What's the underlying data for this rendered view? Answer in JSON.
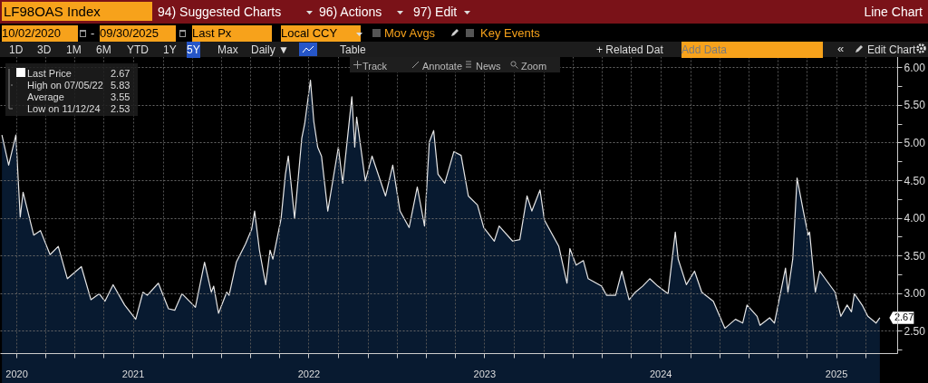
{
  "chart_data": {
    "type": "area",
    "title": "LF98OAS Index",
    "subtitle": "Line Chart",
    "annotations": [
      "94) Suggested Charts",
      "96) Actions",
      "97) Edit",
      "10/02/2020",
      "-",
      "09/30/2025",
      "Last Px",
      "Local CCY",
      "Mov Avgs",
      "Key Events",
      "1D",
      "3D",
      "1M",
      "6M",
      "YTD",
      "1Y",
      "5Y",
      "Max",
      "Daily ▼",
      "Table",
      "+ Related Dat",
      "Add Data",
      "«",
      "Edit Chart",
      "Track",
      "Annotate",
      "News",
      "Zoom",
      "Last Price",
      "2.67",
      "High on 07/05/22",
      "5.83",
      "Average",
      "3.55",
      "Low on 11/12/24",
      "2.53",
      {
        "text": "2.67",
        "x": "2025-09-30",
        "y": 2.67
      }
    ],
    "x": [
      "2020-10-02",
      "2020-10-16",
      "2020-10-31",
      "2020-11-09",
      "2020-11-15",
      "2020-12-07",
      "2020-12-21",
      "2021-01-10",
      "2021-01-27",
      "2021-02-15",
      "2021-03-16",
      "2021-04-05",
      "2021-04-22",
      "2021-05-04",
      "2021-05-21",
      "2021-06-14",
      "2021-07-07",
      "2021-07-22",
      "2021-07-31",
      "2021-08-23",
      "2021-09-13",
      "2021-09-26",
      "2021-10-11",
      "2021-11-08",
      "2021-11-27",
      "2021-12-11",
      "2021-12-16",
      "2021-12-26",
      "2022-01-12",
      "2022-01-17",
      "2022-02-01",
      "2022-02-20",
      "2022-03-05",
      "2022-03-11",
      "2022-03-21",
      "2022-04-03",
      "2022-04-12",
      "2022-04-18",
      "2022-05-05",
      "2022-05-14",
      "2022-05-20",
      "2022-06-02",
      "2022-06-17",
      "2022-06-23",
      "2022-07-05",
      "2022-07-12",
      "2022-07-20",
      "2022-07-28",
      "2022-08-10",
      "2022-09-01",
      "2022-09-10",
      "2022-09-29",
      "2022-10-05",
      "2022-10-09",
      "2022-10-27",
      "2022-11-10",
      "2022-12-08",
      "2022-12-23",
      "2023-01-07",
      "2023-01-26",
      "2023-02-12",
      "2023-02-27",
      "2023-03-09",
      "2023-03-18",
      "2023-03-27",
      "2023-04-10",
      "2023-04-29",
      "2023-05-14",
      "2023-05-29",
      "2023-06-17",
      "2023-06-30",
      "2023-07-22",
      "2023-08-01",
      "2023-08-29",
      "2023-09-13",
      "2023-09-28",
      "2023-10-08",
      "2023-10-25",
      "2023-11-03",
      "2023-12-03",
      "2023-12-20",
      "2023-12-26",
      "2024-01-08",
      "2024-01-23",
      "2024-02-02",
      "2024-03-01",
      "2024-03-11",
      "2024-03-30",
      "2024-04-12",
      "2024-04-27",
      "2024-05-10",
      "2024-05-25",
      "2024-06-09",
      "2024-06-26",
      "2024-07-17",
      "2024-08-01",
      "2024-08-07",
      "2024-08-24",
      "2024-09-10",
      "2024-09-25",
      "2024-10-19",
      "2024-11-12",
      "2024-12-04",
      "2024-12-19",
      "2024-12-28",
      "2025-01-18",
      "2025-01-24",
      "2025-02-13",
      "2025-02-23",
      "2025-03-18",
      "2025-03-23",
      "2025-04-02",
      "2025-04-11",
      "2025-04-24",
      "2025-05-04",
      "2025-05-07",
      "2025-05-19",
      "2025-05-28",
      "2025-06-29",
      "2025-07-11",
      "2025-07-24",
      "2025-08-02",
      "2025-08-08",
      "2025-08-25",
      "2025-09-05",
      "2025-09-22",
      "2025-09-30"
    ],
    "series": [
      {
        "color": "#0b2545",
        "values": [
          5.1,
          4.7,
          5.1,
          4.01,
          4.34,
          3.77,
          3.83,
          3.51,
          3.62,
          3.19,
          3.35,
          2.91,
          2.99,
          2.89,
          3.11,
          2.84,
          2.65,
          3.01,
          2.97,
          3.13,
          2.79,
          2.77,
          2.99,
          2.81,
          3.41,
          3.01,
          3.09,
          2.73,
          3.01,
          2.97,
          3.41,
          3.65,
          3.85,
          4.09,
          3.57,
          3.11,
          3.57,
          3.45,
          3.99,
          4.58,
          4.82,
          3.99,
          5.06,
          5.25,
          5.83,
          5.28,
          4.94,
          4.82,
          4.09,
          4.94,
          4.46,
          5.61,
          4.94,
          5.34,
          4.49,
          4.82,
          4.29,
          4.7,
          4.09,
          3.87,
          4.41,
          3.89,
          5.01,
          5.16,
          4.58,
          4.46,
          4.88,
          4.83,
          4.29,
          4.17,
          3.87,
          3.69,
          3.89,
          3.69,
          3.71,
          4.29,
          4.09,
          4.37,
          3.97,
          3.62,
          3.13,
          3.59,
          3.37,
          3.43,
          3.19,
          3.09,
          2.97,
          2.97,
          3.29,
          2.91,
          3.01,
          3.09,
          3.19,
          3.09,
          2.99,
          3.81,
          3.45,
          3.11,
          3.29,
          3.01,
          2.89,
          2.53,
          2.65,
          2.6,
          2.84,
          2.69,
          2.57,
          2.67,
          2.6,
          3.33,
          3.01,
          3.45,
          4.53,
          4.09,
          3.77,
          3.81,
          3.01,
          3.29,
          3.01,
          2.69,
          2.84,
          2.75,
          2.99,
          2.83,
          2.69,
          2.6,
          2.67
        ]
      }
    ],
    "xlim": [
      "2020-09-28",
      "2025-11-05"
    ],
    "xticks": [
      {
        "value": "2020-11-01",
        "label": "2020"
      },
      {
        "value": "2021-01-01",
        "label": null
      },
      {
        "value": "2021-03-01",
        "label": null
      },
      {
        "value": "2021-05-01",
        "label": null
      },
      {
        "value": "2021-07-01",
        "label": "2021"
      },
      {
        "value": "2021-09-01",
        "label": null
      },
      {
        "value": "2021-11-01",
        "label": null
      },
      {
        "value": "2022-01-01",
        "label": null
      },
      {
        "value": "2022-03-01",
        "label": null
      },
      {
        "value": "2022-05-01",
        "label": null
      },
      {
        "value": "2022-07-01",
        "label": "2022"
      },
      {
        "value": "2022-09-01",
        "label": null
      },
      {
        "value": "2022-11-01",
        "label": null
      },
      {
        "value": "2023-01-01",
        "label": null
      },
      {
        "value": "2023-03-01",
        "label": null
      },
      {
        "value": "2023-05-01",
        "label": null
      },
      {
        "value": "2023-07-01",
        "label": "2023"
      },
      {
        "value": "2023-09-01",
        "label": null
      },
      {
        "value": "2023-11-01",
        "label": null
      },
      {
        "value": "2024-01-01",
        "label": null
      },
      {
        "value": "2024-03-01",
        "label": null
      },
      {
        "value": "2024-05-01",
        "label": null
      },
      {
        "value": "2024-07-01",
        "label": "2024"
      },
      {
        "value": "2024-09-01",
        "label": null
      },
      {
        "value": "2024-11-01",
        "label": null
      },
      {
        "value": "2025-01-01",
        "label": null
      },
      {
        "value": "2025-03-01",
        "label": null
      },
      {
        "value": "2025-05-01",
        "label": null
      },
      {
        "value": "2025-07-01",
        "label": "2025"
      },
      {
        "value": "2025-09-01",
        "label": null
      }
    ],
    "ylim": [
      2.2,
      6.15
    ],
    "yticks": [
      {
        "value": 2.25,
        "label": null
      },
      {
        "value": 2.5,
        "label": "2.50"
      },
      {
        "value": 2.75,
        "label": null
      },
      {
        "value": 3,
        "label": "3.00"
      },
      {
        "value": 3.25,
        "label": null
      },
      {
        "value": 3.5,
        "label": "3.50"
      },
      {
        "value": 3.75,
        "label": null
      },
      {
        "value": 4,
        "label": "4.00"
      },
      {
        "value": 4.25,
        "label": null
      },
      {
        "value": 4.5,
        "label": "4.50"
      },
      {
        "value": 4.75,
        "label": null
      },
      {
        "value": 5,
        "label": "5.00"
      },
      {
        "value": 5.25,
        "label": null
      },
      {
        "value": 5.5,
        "label": "5.50"
      },
      {
        "value": 5.75,
        "label": null
      },
      {
        "value": 6,
        "label": "6.00"
      }
    ],
    "grid": true,
    "marker": "none",
    "line_style": "solid"
  }
}
